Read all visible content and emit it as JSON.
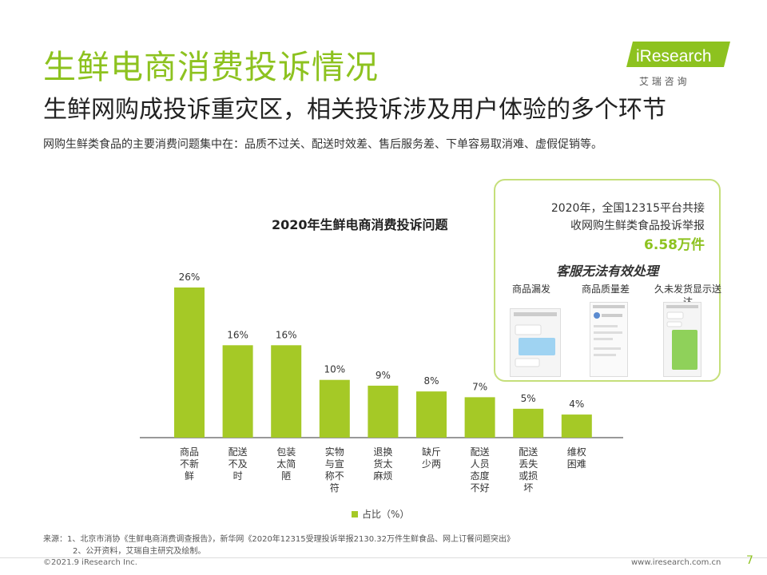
{
  "header": {
    "title": "生鲜电商消费投诉情况",
    "subtitle": "生鲜网购成投诉重灾区，相关投诉涉及用户体验的多个环节",
    "summary": "网购生鲜类食品的主要消费问题集中在：品质不过关、配送时效差、售后服务差、下单容易取消难、虚假促销等。"
  },
  "logo": {
    "brand": "iResearch",
    "chinese": "艾 瑞 咨 询"
  },
  "chart_data": {
    "type": "bar",
    "title": "2020年生鲜电商消费投诉问题",
    "categories": [
      "商品不新鲜",
      "配送不及时",
      "包装太简陋",
      "实物与宣称不符",
      "退换货太麻烦",
      "缺斤少两",
      "配送人员态度不好",
      "配送丢失或损坏",
      "维权困难"
    ],
    "category_lines": [
      [
        "商品",
        "不新",
        "鲜"
      ],
      [
        "配送",
        "不及",
        "时"
      ],
      [
        "包装",
        "太简",
        "陋"
      ],
      [
        "实物",
        "与宣",
        "称不",
        "符"
      ],
      [
        "退换",
        "货太",
        "麻烦"
      ],
      [
        "缺斤",
        "少两"
      ],
      [
        "配送",
        "人员",
        "态度",
        "不好"
      ],
      [
        "配送",
        "丢失",
        "或损",
        "坏"
      ],
      [
        "维权",
        "困难"
      ]
    ],
    "values": [
      26,
      16,
      16,
      10,
      9,
      8,
      7,
      5,
      4
    ],
    "value_labels": [
      "26%",
      "16%",
      "16%",
      "10%",
      "9%",
      "8%",
      "7%",
      "5%",
      "4%"
    ],
    "ylim": [
      0,
      26
    ],
    "legend": "占比（%）",
    "color": "#a5c926"
  },
  "callout": {
    "line1": "2020年，全国12315平台共接",
    "line2": "收网购生鲜类食品投诉举报",
    "value": "6.58万件",
    "heading": "客服无法有效处理",
    "screenshots": [
      {
        "label": "商品漏发"
      },
      {
        "label": "商品质量差"
      },
      {
        "label": "久未发货显示送达"
      }
    ]
  },
  "source": {
    "line1": "来源：1、北京市消协《生鲜电商消费调查报告》，新华网《2020年12315受理投诉举报2130.32万件生鲜食品、网上订餐问题突出》",
    "line2": "2、公开资料，艾瑞自主研究及绘制。"
  },
  "footer": {
    "copyright": "©2021.9 iResearch Inc.",
    "website": "www.iresearch.com.cn",
    "page": "7"
  }
}
